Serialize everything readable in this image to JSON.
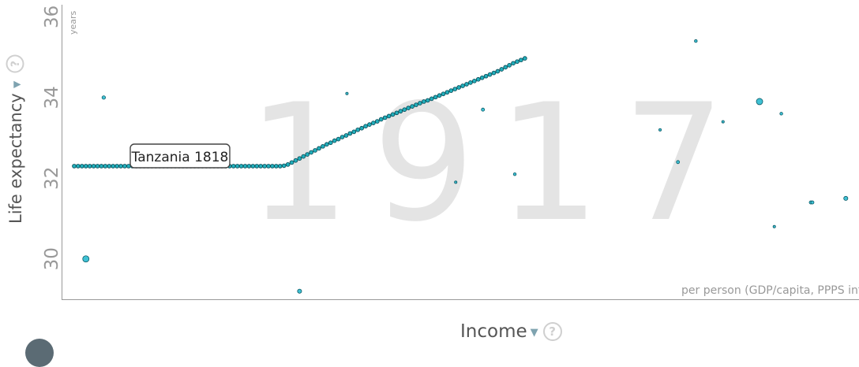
{
  "chart_data": {
    "type": "scatter",
    "year": "1917",
    "x_unit_label": "per person (GDP/capita, PPPS infla",
    "y_axis": {
      "label": "Life expectancy",
      "unit": "years",
      "ticks": [
        "30",
        "32",
        "34",
        "36"
      ],
      "ylim": [
        29.0,
        36.3
      ]
    },
    "x_axis": {
      "label": "Income",
      "xlim": [
        0,
        1010
      ]
    },
    "selected": {
      "label": "Tanzania 1818",
      "trail_color": "#22b0bd",
      "trail": [
        [
          0,
          32.3
        ],
        [
          5,
          32.3
        ],
        [
          10,
          32.3
        ],
        [
          15,
          32.3
        ],
        [
          20,
          32.3
        ],
        [
          25,
          32.3
        ],
        [
          30,
          32.3
        ],
        [
          35,
          32.3
        ],
        [
          40,
          32.3
        ],
        [
          45,
          32.3
        ],
        [
          50,
          32.3
        ],
        [
          55,
          32.3
        ],
        [
          60,
          32.3
        ],
        [
          65,
          32.3
        ],
        [
          70,
          32.3
        ],
        [
          75,
          32.3
        ],
        [
          80,
          32.3
        ],
        [
          85,
          32.3
        ],
        [
          90,
          32.3
        ],
        [
          95,
          32.3
        ],
        [
          100,
          32.3
        ],
        [
          105,
          32.3
        ],
        [
          110,
          32.3
        ],
        [
          115,
          32.3
        ],
        [
          120,
          32.3
        ],
        [
          125,
          32.3
        ],
        [
          130,
          32.3
        ],
        [
          135,
          32.3
        ],
        [
          140,
          32.3
        ],
        [
          145,
          32.3
        ],
        [
          150,
          32.3
        ],
        [
          155,
          32.3
        ],
        [
          160,
          32.3
        ],
        [
          165,
          32.3
        ],
        [
          170,
          32.3
        ],
        [
          175,
          32.3
        ],
        [
          180,
          32.3
        ],
        [
          185,
          32.3
        ],
        [
          190,
          32.3
        ],
        [
          195,
          32.3
        ],
        [
          200,
          32.3
        ],
        [
          205,
          32.3
        ],
        [
          210,
          32.3
        ],
        [
          215,
          32.3
        ],
        [
          220,
          32.3
        ],
        [
          225,
          32.3
        ],
        [
          230,
          32.3
        ],
        [
          235,
          32.3
        ],
        [
          240,
          32.3
        ],
        [
          245,
          32.3
        ],
        [
          250,
          32.3
        ],
        [
          255,
          32.3
        ],
        [
          260,
          32.3
        ],
        [
          265,
          32.3
        ],
        [
          270,
          32.31
        ],
        [
          275,
          32.34
        ],
        [
          280,
          32.39
        ],
        [
          285,
          32.44
        ],
        [
          290,
          32.49
        ],
        [
          295,
          32.54
        ],
        [
          300,
          32.59
        ],
        [
          305,
          32.64
        ],
        [
          310,
          32.69
        ],
        [
          315,
          32.74
        ],
        [
          320,
          32.79
        ],
        [
          325,
          32.84
        ],
        [
          330,
          32.88
        ],
        [
          335,
          32.93
        ],
        [
          340,
          32.97
        ],
        [
          345,
          33.02
        ],
        [
          350,
          33.06
        ],
        [
          355,
          33.11
        ],
        [
          360,
          33.15
        ],
        [
          365,
          33.2
        ],
        [
          370,
          33.24
        ],
        [
          375,
          33.29
        ],
        [
          380,
          33.33
        ],
        [
          385,
          33.37
        ],
        [
          390,
          33.41
        ],
        [
          395,
          33.46
        ],
        [
          400,
          33.5
        ],
        [
          405,
          33.54
        ],
        [
          410,
          33.58
        ],
        [
          415,
          33.62
        ],
        [
          420,
          33.66
        ],
        [
          425,
          33.7
        ],
        [
          430,
          33.74
        ],
        [
          435,
          33.78
        ],
        [
          440,
          33.82
        ],
        [
          445,
          33.86
        ],
        [
          450,
          33.9
        ],
        [
          455,
          33.93
        ],
        [
          460,
          33.97
        ],
        [
          465,
          34.01
        ],
        [
          470,
          34.05
        ],
        [
          475,
          34.09
        ],
        [
          480,
          34.13
        ],
        [
          485,
          34.17
        ],
        [
          490,
          34.21
        ],
        [
          495,
          34.25
        ],
        [
          500,
          34.29
        ],
        [
          505,
          34.33
        ],
        [
          510,
          34.37
        ],
        [
          515,
          34.41
        ],
        [
          520,
          34.45
        ],
        [
          525,
          34.49
        ],
        [
          530,
          34.53
        ],
        [
          535,
          34.57
        ],
        [
          540,
          34.61
        ],
        [
          545,
          34.65
        ],
        [
          550,
          34.7
        ],
        [
          555,
          34.75
        ],
        [
          560,
          34.8
        ],
        [
          565,
          34.85
        ],
        [
          570,
          34.89
        ],
        [
          575,
          34.93
        ],
        [
          580,
          34.97
        ]
      ]
    },
    "points": [
      {
        "x": 15,
        "y": 30.0,
        "size": 4,
        "color": "#3fc1d4"
      },
      {
        "x": 38,
        "y": 34.0,
        "size": 2.2,
        "color": "#3fc1d4"
      },
      {
        "x": 290,
        "y": 29.2,
        "size": 2.6,
        "color": "#3fc1d4"
      },
      {
        "x": 351,
        "y": 34.1,
        "size": 1.6,
        "color": "#3fc1d4"
      },
      {
        "x": 491,
        "y": 31.9,
        "size": 1.6,
        "color": "#3fc1d4"
      },
      {
        "x": 526,
        "y": 33.7,
        "size": 2.0,
        "color": "#3fc1d4"
      },
      {
        "x": 567,
        "y": 32.1,
        "size": 1.8,
        "color": "#3fc1d4"
      },
      {
        "x": 754,
        "y": 33.2,
        "size": 1.6,
        "color": "#3fc1d4"
      },
      {
        "x": 777,
        "y": 32.4,
        "size": 2.0,
        "color": "#3fc1d4"
      },
      {
        "x": 800,
        "y": 35.4,
        "size": 1.8,
        "color": "#3fc1d4"
      },
      {
        "x": 835,
        "y": 33.4,
        "size": 1.6,
        "color": "#3fc1d4"
      },
      {
        "x": 882,
        "y": 33.9,
        "size": 4,
        "color": "#3fc1d4"
      },
      {
        "x": 901,
        "y": 30.8,
        "size": 1.6,
        "color": "#3fc1d4"
      },
      {
        "x": 910,
        "y": 33.6,
        "size": 1.8,
        "color": "#3fc1d4"
      },
      {
        "x": 948,
        "y": 31.4,
        "size": 2.0,
        "color": "#3fc1d4"
      },
      {
        "x": 950,
        "y": 31.4,
        "size": 2.0,
        "color": "#3fc1d4"
      },
      {
        "x": 993,
        "y": 31.5,
        "size": 2.6,
        "color": "#3fc1d4"
      }
    ]
  },
  "ui": {
    "help_symbol": "?",
    "dropdown_symbol": "▼"
  }
}
